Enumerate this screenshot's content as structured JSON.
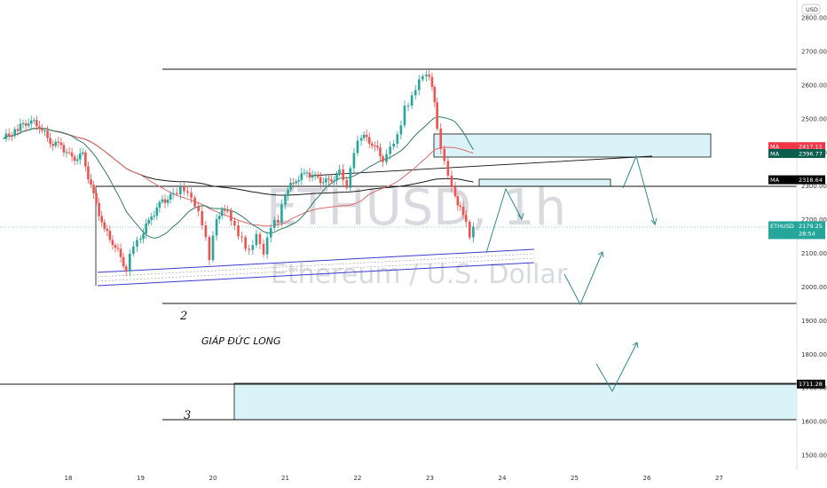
{
  "chart_data": {
    "type": "candlestick",
    "title": "ETHUSD, 1h",
    "watermark_symbol": "ETHUSD, 1h",
    "watermark_name": "Ethereum / U.S. Dollar",
    "currency": "USD",
    "y_axis": {
      "min": 1475,
      "max": 2880,
      "ticks": [
        1500,
        1600,
        1700,
        1800,
        1900,
        2000,
        2100,
        2200,
        2300,
        2400,
        2500,
        2600,
        2700,
        2800
      ],
      "tick_labels": [
        "1500.00",
        "1600.00",
        "1700.00",
        "1800.00",
        "1900.00",
        "2000.00",
        "2100.00",
        "2200.00",
        "2300.00",
        "2400.00",
        "2500.00",
        "2600.00",
        "2700.00",
        "2800.00"
      ]
    },
    "x_axis": {
      "min": 17.1,
      "max": 27.95,
      "ticks": [
        18,
        19,
        20,
        21,
        22,
        23,
        24,
        25,
        26,
        27
      ],
      "tick_labels": [
        "18",
        "19",
        "20",
        "21",
        "22",
        "23",
        "24",
        "25",
        "26",
        "27"
      ]
    },
    "price_series_close": [
      [
        17.1,
        2440
      ],
      [
        17.3,
        2470
      ],
      [
        17.45,
        2495
      ],
      [
        17.6,
        2480
      ],
      [
        17.75,
        2430
      ],
      [
        17.9,
        2420
      ],
      [
        18.05,
        2380
      ],
      [
        18.2,
        2390
      ],
      [
        18.35,
        2270
      ],
      [
        18.5,
        2170
      ],
      [
        18.65,
        2120
      ],
      [
        18.8,
        2055
      ],
      [
        18.9,
        2130
      ],
      [
        19.0,
        2150
      ],
      [
        19.15,
        2210
      ],
      [
        19.3,
        2255
      ],
      [
        19.45,
        2270
      ],
      [
        19.55,
        2290
      ],
      [
        19.65,
        2275
      ],
      [
        19.75,
        2240
      ],
      [
        19.85,
        2190
      ],
      [
        19.95,
        2090
      ],
      [
        20.05,
        2210
      ],
      [
        20.2,
        2230
      ],
      [
        20.3,
        2180
      ],
      [
        20.4,
        2140
      ],
      [
        20.5,
        2100
      ],
      [
        20.6,
        2150
      ],
      [
        20.7,
        2095
      ],
      [
        20.8,
        2180
      ],
      [
        20.9,
        2200
      ],
      [
        21.0,
        2280
      ],
      [
        21.15,
        2320
      ],
      [
        21.3,
        2340
      ],
      [
        21.45,
        2320
      ],
      [
        21.6,
        2310
      ],
      [
        21.75,
        2340
      ],
      [
        21.85,
        2290
      ],
      [
        21.95,
        2400
      ],
      [
        22.05,
        2450
      ],
      [
        22.2,
        2430
      ],
      [
        22.35,
        2380
      ],
      [
        22.45,
        2420
      ],
      [
        22.55,
        2450
      ],
      [
        22.65,
        2530
      ],
      [
        22.75,
        2560
      ],
      [
        22.85,
        2610
      ],
      [
        22.95,
        2630
      ],
      [
        23.03,
        2600
      ],
      [
        23.1,
        2480
      ],
      [
        23.15,
        2420
      ],
      [
        23.2,
        2380
      ],
      [
        23.25,
        2330
      ],
      [
        23.3,
        2290
      ],
      [
        23.35,
        2260
      ],
      [
        23.42,
        2230
      ],
      [
        23.5,
        2190
      ],
      [
        23.55,
        2150
      ],
      [
        23.6,
        2179.25
      ]
    ],
    "series": [
      {
        "name": "MA",
        "value": 2417.11,
        "label": "2417.11",
        "color": "#f23645"
      },
      {
        "name": "MA",
        "value": 2396.77,
        "label": "2396.77",
        "color": "#0b5d4e"
      },
      {
        "name": "MA",
        "value": 2318.64,
        "label": "2318.64",
        "color": "#000000"
      }
    ],
    "last_price": {
      "symbol": "ETHUSD",
      "value": 2179.25,
      "label": "2179.25",
      "countdown": "28:54",
      "color": "#26a69a"
    },
    "level_label": {
      "value": 1711.28,
      "label": "1711.28"
    },
    "annotations": {
      "wave_2": "2",
      "wave_3": "3",
      "author": "GIÁP ĐỨC LONG"
    },
    "colors": {
      "up_candle": "#26a69a",
      "down_candle": "#ef5350",
      "zone_fill": "#d9f3f8",
      "channel": "#3b3bd1",
      "projection": "#2e8b8b"
    },
    "grid": false
  }
}
